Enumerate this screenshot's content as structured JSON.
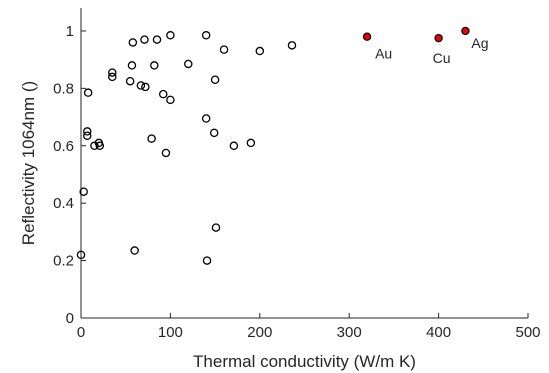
{
  "chart_data": {
    "type": "scatter",
    "xlabel": "Thermal conductivity (W/m K)",
    "ylabel": "Reflectivity 1064nm ()",
    "xlim": [
      0,
      500
    ],
    "ylim": [
      0,
      1.08
    ],
    "x_ticks": [
      "0",
      "100",
      "200",
      "300",
      "400",
      "500"
    ],
    "y_ticks": [
      "0",
      "0.2",
      "0.4",
      "0.6",
      "0.8",
      "1"
    ],
    "grid": false,
    "legend": "none",
    "colors": {
      "open_marker": "#000000",
      "highlight_fill": "#e8000b",
      "axis": "#262626"
    },
    "series": [
      {
        "marker": "open-circle",
        "points": [
          [
            0,
            0.22
          ],
          [
            3,
            0.44
          ],
          [
            7,
            0.65
          ],
          [
            7,
            0.635
          ],
          [
            8,
            0.785
          ],
          [
            15,
            0.6
          ],
          [
            20,
            0.61
          ],
          [
            21,
            0.6
          ],
          [
            35,
            0.855
          ],
          [
            35,
            0.84
          ],
          [
            55,
            0.825
          ],
          [
            57,
            0.88
          ],
          [
            58,
            0.96
          ],
          [
            60,
            0.235
          ],
          [
            67,
            0.81
          ],
          [
            71,
            0.97
          ],
          [
            72,
            0.805
          ],
          [
            79,
            0.625
          ],
          [
            82,
            0.88
          ],
          [
            85,
            0.97
          ],
          [
            92,
            0.78
          ],
          [
            95,
            0.575
          ],
          [
            100,
            0.76
          ],
          [
            100,
            0.985
          ],
          [
            120,
            0.885
          ],
          [
            140,
            0.695
          ],
          [
            140,
            0.985
          ],
          [
            141,
            0.2
          ],
          [
            149,
            0.645
          ],
          [
            150,
            0.83
          ],
          [
            151,
            0.315
          ],
          [
            160,
            0.935
          ],
          [
            171,
            0.6
          ],
          [
            190,
            0.61
          ],
          [
            200,
            0.93
          ],
          [
            236,
            0.95
          ]
        ]
      },
      {
        "marker": "filled-circle",
        "points": [
          [
            320,
            0.98
          ],
          [
            400,
            0.975
          ],
          [
            430,
            1.0
          ]
        ]
      }
    ],
    "annotations": [
      {
        "text": "Au",
        "x": 320,
        "y": 0.98
      },
      {
        "text": "Cu",
        "x": 400,
        "y": 0.975
      },
      {
        "text": "Ag",
        "x": 430,
        "y": 1.0
      }
    ]
  }
}
